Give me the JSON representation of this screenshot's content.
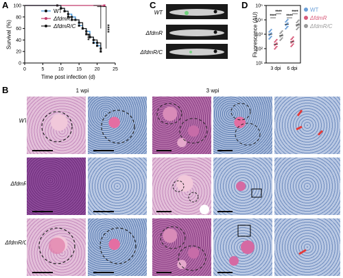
{
  "panels": {
    "A": "A",
    "B": "B",
    "C": "C",
    "D": "D"
  },
  "panelA": {
    "ylabel": "Survival (%)",
    "xlabel": "Time post infection (d)",
    "yticks": [
      "0",
      "20",
      "40",
      "60",
      "80",
      "100"
    ],
    "xticks": [
      "0",
      "5",
      "10",
      "15",
      "20",
      "25"
    ],
    "legend": [
      {
        "name": "WT",
        "color": "#111111"
      },
      {
        "name": "ΔfdmR",
        "color": "#c0396b"
      },
      {
        "name": "ΔfdmR/C",
        "color": "#111111"
      }
    ],
    "sig": [
      "***",
      "****"
    ]
  },
  "panelB": {
    "col_1wpi": "1 wpi",
    "col_3wpi": "3 wpi",
    "rows": [
      "WT",
      "ΔfdmR",
      "ΔfdmR/C"
    ]
  },
  "panelC": {
    "rows": [
      "WT",
      "ΔfdmR",
      "ΔfdmR/C"
    ]
  },
  "panelD": {
    "ylabel": "Fluorescence (AU)",
    "yticks": [
      "10¹",
      "10²",
      "10³",
      "10⁴",
      "10⁵"
    ],
    "xticks": [
      "3 dpi",
      "6 dpi"
    ],
    "legend": [
      {
        "name": "WT",
        "color": "#6a9fd8"
      },
      {
        "name": "ΔfdmR",
        "color": "#d95b7a"
      },
      {
        "name": "ΔfdmR/C",
        "color": "#9a9a9a"
      }
    ],
    "sig": [
      "****",
      "****",
      "****",
      "****"
    ]
  },
  "chart_data": [
    {
      "type": "line",
      "xlabel": "Time post infection (d)",
      "ylabel": "Survival (%)",
      "xlim": [
        0,
        25
      ],
      "ylim": [
        0,
        100
      ],
      "series": [
        {
          "name": "WT",
          "x": [
            0,
            9,
            10,
            11,
            12,
            13,
            14,
            15,
            16,
            17,
            18,
            19,
            20,
            21
          ],
          "values": [
            100,
            100,
            95,
            90,
            85,
            80,
            75,
            65,
            60,
            55,
            45,
            35,
            30,
            25
          ]
        },
        {
          "name": "ΔfdmR",
          "x": [
            0,
            22
          ],
          "values": [
            100,
            100
          ]
        },
        {
          "name": "ΔfdmR/C",
          "x": [
            0,
            10,
            11,
            12,
            13,
            15,
            16,
            17,
            18,
            19,
            20,
            21
          ],
          "values": [
            100,
            95,
            90,
            80,
            75,
            70,
            60,
            50,
            45,
            40,
            35,
            20
          ]
        }
      ]
    },
    {
      "type": "scatter",
      "ylabel": "Fluorescence (AU)",
      "categories": [
        "3 dpi",
        "6 dpi"
      ],
      "yscale": "log",
      "ylim": [
        10,
        100000
      ],
      "series": [
        {
          "name": "WT",
          "means": [
            1000,
            5000
          ]
        },
        {
          "name": "ΔfdmR",
          "means": [
            200,
            300
          ]
        },
        {
          "name": "ΔfdmR/C",
          "means": [
            800,
            4500
          ]
        }
      ]
    }
  ]
}
